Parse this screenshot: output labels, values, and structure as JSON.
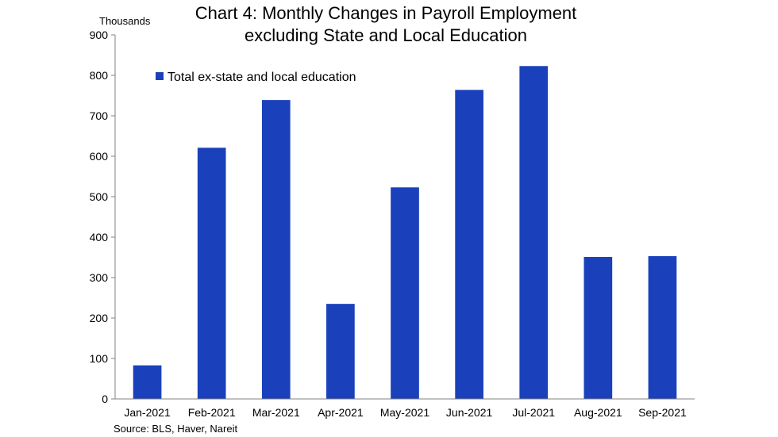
{
  "chart_data": {
    "type": "bar",
    "title": "Chart 4: Monthly Changes in Payroll Employment",
    "subtitle": "excluding State and Local Education",
    "ylabel": "Thousands",
    "xlabel": "",
    "ylim": [
      0,
      900
    ],
    "yticks": [
      0,
      100,
      200,
      300,
      400,
      500,
      600,
      700,
      800,
      900
    ],
    "categories": [
      "Jan-2021",
      "Feb-2021",
      "Mar-2021",
      "Apr-2021",
      "May-2021",
      "Jun-2021",
      "Jul-2021",
      "Aug-2021",
      "Sep-2021"
    ],
    "series": [
      {
        "name": "Total ex-state and local education",
        "color": "#1a41bb",
        "values": [
          83,
          621,
          739,
          235,
          523,
          764,
          823,
          351,
          353
        ]
      }
    ],
    "grid": false,
    "legend_position": "top-left",
    "source": "Source: BLS, Haver, Nareit"
  }
}
